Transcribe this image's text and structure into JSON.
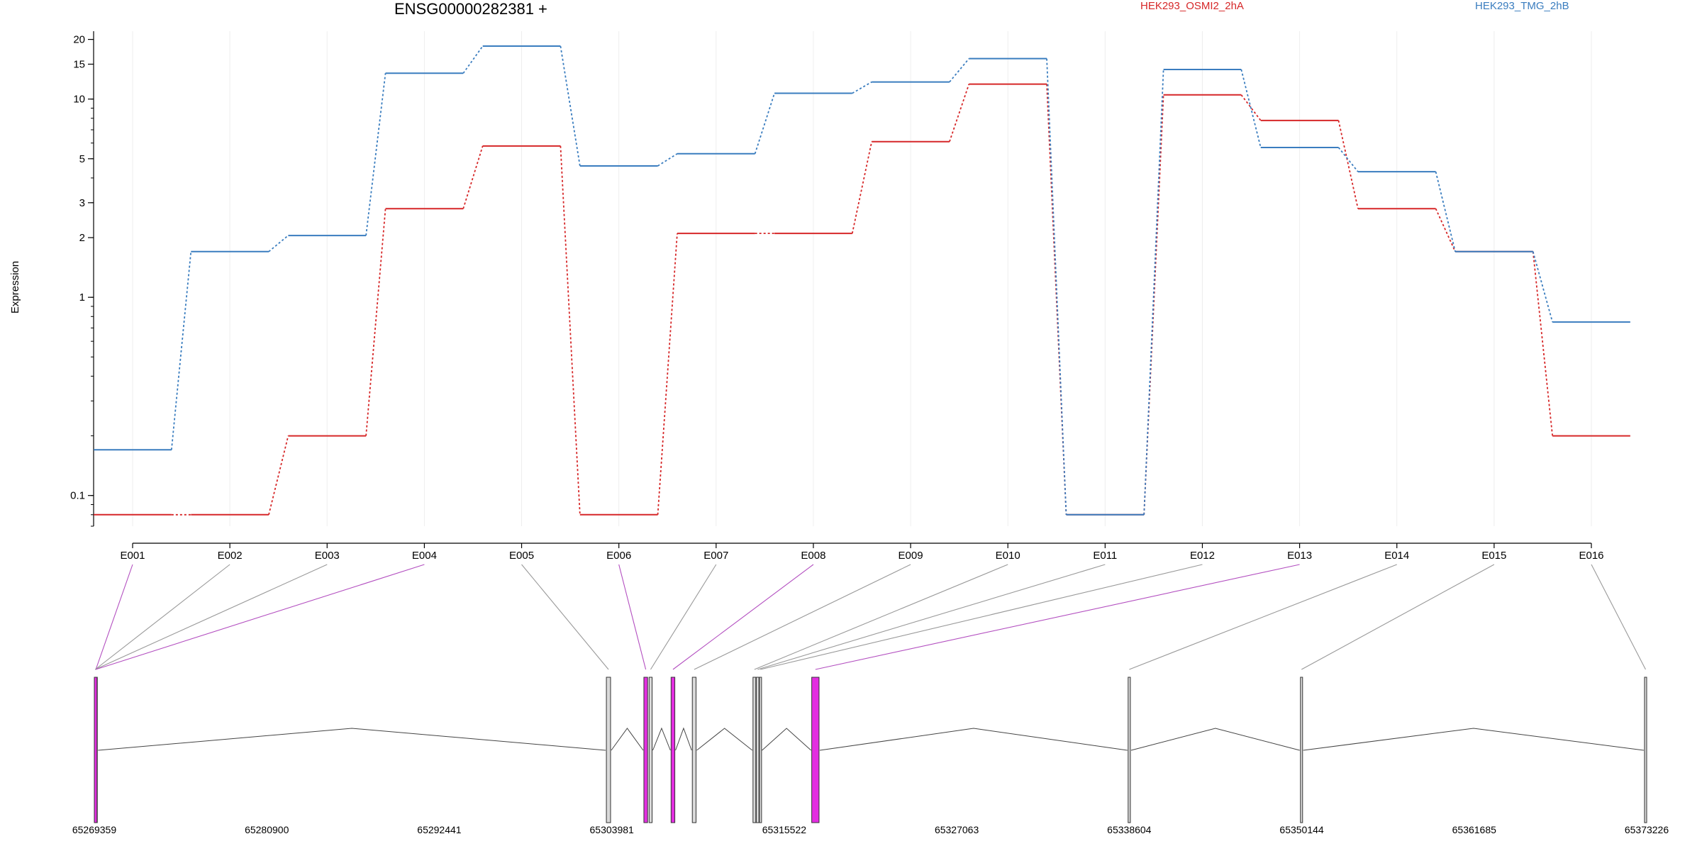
{
  "chart_data": {
    "type": "line",
    "title": "ENSG00000282381 +",
    "ylabel": "Expression",
    "xlabel": "",
    "yscale": "log",
    "ylim": [
      0.07,
      22
    ],
    "y_ticks": [
      {
        "value": 0.1,
        "label": "0.1"
      },
      {
        "value": 1,
        "label": "1"
      },
      {
        "value": 2,
        "label": "2"
      },
      {
        "value": 3,
        "label": "3"
      },
      {
        "value": 5,
        "label": "5"
      },
      {
        "value": 10,
        "label": "10"
      },
      {
        "value": 15,
        "label": "15"
      },
      {
        "value": 20,
        "label": "20"
      }
    ],
    "grid": true,
    "legend_position": "top-right",
    "categories": [
      "E001",
      "E002",
      "E003",
      "E004",
      "E005",
      "E006",
      "E007",
      "E008",
      "E009",
      "E010",
      "E011",
      "E012",
      "E013",
      "E014",
      "E015",
      "E016"
    ],
    "series": [
      {
        "name": "HEK293_OSMI2_2hA",
        "color": "#d62728",
        "values": [
          0.08,
          0.08,
          0.2,
          2.8,
          5.8,
          0.08,
          2.1,
          2.1,
          6.1,
          11.9,
          0.08,
          10.5,
          7.8,
          2.8,
          1.7,
          0.2
        ]
      },
      {
        "name": "HEK293_TMG_2hB",
        "color": "#3a7dbf",
        "values": [
          0.17,
          1.7,
          2.05,
          13.5,
          18.5,
          4.6,
          5.3,
          10.7,
          12.2,
          16.0,
          0.08,
          14.1,
          5.7,
          4.3,
          1.7,
          0.75
        ]
      }
    ],
    "gene_model": {
      "genomic_range": [
        65269359,
        65373226
      ],
      "coordinate_labels": [
        "65269359",
        "65280900",
        "65292441",
        "65303981",
        "65315522",
        "65327063",
        "65338604",
        "65350144",
        "65361685",
        "65373226"
      ],
      "highlight_color": "#e32ee0",
      "exons": [
        {
          "id": "E001",
          "start": 65269359,
          "end": 65269560,
          "highlight": true
        },
        {
          "id": "E002",
          "start": 65269359,
          "end": 65269480,
          "highlight": false
        },
        {
          "id": "E003",
          "start": 65269359,
          "end": 65269460,
          "highlight": false
        },
        {
          "id": "E004",
          "start": 65269359,
          "end": 65269540,
          "highlight": true
        },
        {
          "id": "E005",
          "start": 65303620,
          "end": 65303900,
          "highlight": false
        },
        {
          "id": "E006",
          "start": 65306130,
          "end": 65306380,
          "highlight": true
        },
        {
          "id": "E007",
          "start": 65306480,
          "end": 65306680,
          "highlight": false
        },
        {
          "id": "E008",
          "start": 65307950,
          "end": 65308200,
          "highlight": true
        },
        {
          "id": "E009",
          "start": 65309370,
          "end": 65309620,
          "highlight": false
        },
        {
          "id": "E010",
          "start": 65313430,
          "end": 65313620,
          "highlight": false
        },
        {
          "id": "E011",
          "start": 65313650,
          "end": 65313830,
          "highlight": false
        },
        {
          "id": "E012",
          "start": 65313860,
          "end": 65313990,
          "highlight": false
        },
        {
          "id": "E013",
          "start": 65317360,
          "end": 65317850,
          "highlight": true
        },
        {
          "id": "E014",
          "start": 65338530,
          "end": 65338680,
          "highlight": false
        },
        {
          "id": "E015",
          "start": 65350060,
          "end": 65350200,
          "highlight": false
        },
        {
          "id": "E016",
          "start": 65373080,
          "end": 65373226,
          "highlight": false
        }
      ]
    }
  }
}
